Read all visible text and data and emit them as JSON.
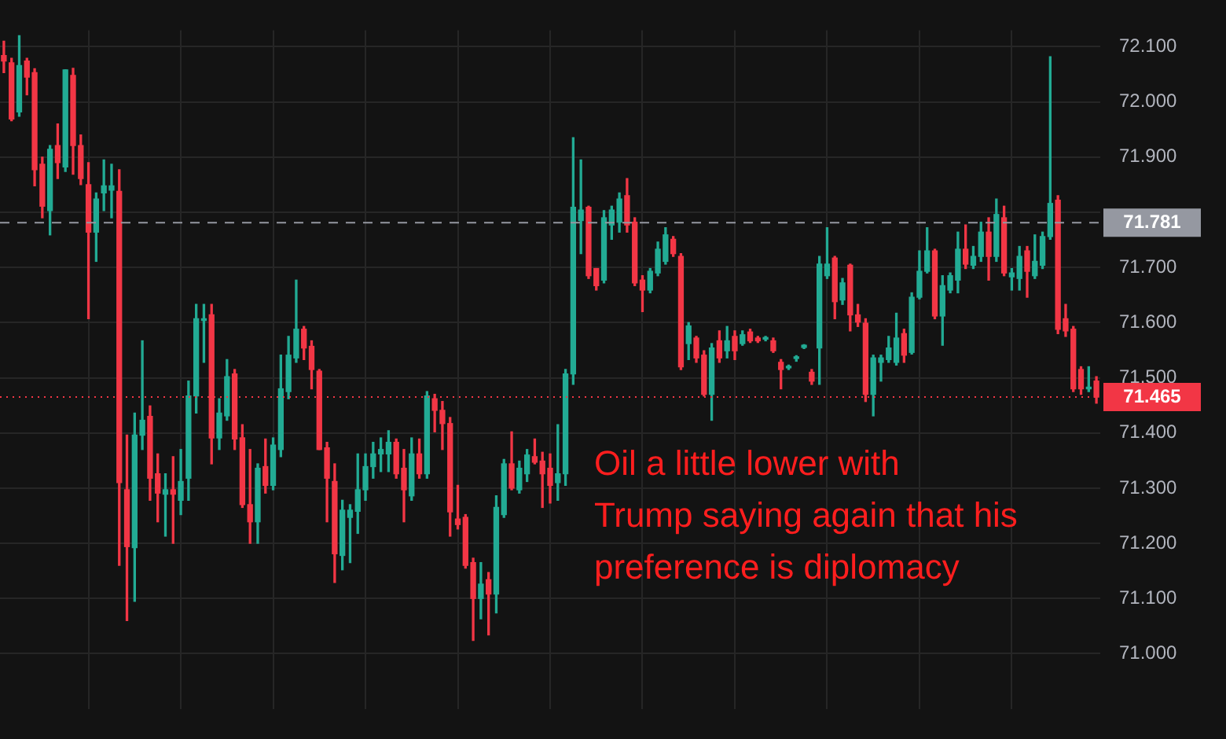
{
  "chart_data": {
    "type": "candlestick",
    "categories": [
      null,
      null,
      null,
      null,
      null,
      null,
      null,
      null,
      null,
      null,
      null,
      null,
      null,
      null,
      null,
      null,
      null,
      null,
      null,
      null,
      null,
      null,
      null,
      null,
      null,
      null,
      null,
      null,
      null,
      null,
      null,
      null,
      null,
      null,
      null,
      null,
      null,
      null,
      null,
      null,
      null,
      null,
      null,
      null,
      null,
      null,
      null,
      null,
      null,
      null,
      null,
      null,
      null,
      null,
      null,
      null,
      null,
      null,
      null,
      null,
      null,
      null,
      null,
      null,
      null,
      null,
      null,
      null,
      null,
      null,
      null,
      null,
      null,
      null,
      null,
      null,
      null,
      null,
      null,
      null,
      null,
      null,
      null,
      null,
      null,
      null,
      null,
      null,
      null,
      null,
      null,
      null,
      null,
      null,
      null,
      null,
      null,
      null,
      null,
      null,
      null,
      null,
      null,
      null,
      null,
      null,
      null,
      null,
      null,
      null,
      null,
      null,
      null,
      null,
      null,
      null,
      null,
      null,
      null,
      null,
      null,
      null,
      null,
      null,
      null,
      null,
      null,
      null,
      null,
      null,
      null,
      null,
      null,
      null,
      null,
      null,
      null,
      null,
      null,
      null,
      null,
      null,
      null
    ],
    "ohlc": [
      [
        72.084,
        72.11,
        72.053,
        72.074
      ],
      [
        72.071,
        72.079,
        71.966,
        71.969
      ],
      [
        71.982,
        72.12,
        71.974,
        72.066
      ],
      [
        72.074,
        72.079,
        72.013,
        72.045
      ],
      [
        72.053,
        72.06,
        71.848,
        71.877
      ],
      [
        71.887,
        71.9,
        71.79,
        71.811
      ],
      [
        71.803,
        71.921,
        71.759,
        71.914
      ],
      [
        71.921,
        71.96,
        71.861,
        71.89
      ],
      [
        71.882,
        72.058,
        71.874,
        72.058
      ],
      [
        72.048,
        72.061,
        71.869,
        71.921
      ],
      [
        71.921,
        71.94,
        71.85,
        71.861
      ],
      [
        71.85,
        71.89,
        71.607,
        71.764
      ],
      [
        71.764,
        71.835,
        71.711,
        71.824
      ],
      [
        71.835,
        71.895,
        71.803,
        71.848
      ],
      [
        71.84,
        71.887,
        71.79,
        71.848
      ],
      [
        71.838,
        71.877,
        71.16,
        71.31
      ],
      [
        71.297,
        71.396,
        71.06,
        71.194
      ],
      [
        71.192,
        71.436,
        71.095,
        71.396
      ],
      [
        71.396,
        71.567,
        71.37,
        71.423
      ],
      [
        71.43,
        71.449,
        71.278,
        71.318
      ],
      [
        71.326,
        71.362,
        71.239,
        71.291
      ],
      [
        71.289,
        71.326,
        71.213,
        71.297
      ],
      [
        71.297,
        71.357,
        71.2,
        71.289
      ],
      [
        71.278,
        71.37,
        71.252,
        71.312
      ],
      [
        71.318,
        71.494,
        71.278,
        71.467
      ],
      [
        71.467,
        71.633,
        71.436,
        71.607
      ],
      [
        71.604,
        71.633,
        71.528,
        71.607
      ],
      [
        71.614,
        71.633,
        71.344,
        71.391
      ],
      [
        71.391,
        71.462,
        71.37,
        71.436
      ],
      [
        71.431,
        71.533,
        71.423,
        71.502
      ],
      [
        71.507,
        71.515,
        71.37,
        71.389
      ],
      [
        71.391,
        71.415,
        71.265,
        71.27
      ],
      [
        71.27,
        71.37,
        71.2,
        71.239
      ],
      [
        71.239,
        71.344,
        71.2,
        71.336
      ],
      [
        71.339,
        71.389,
        71.291,
        71.305
      ],
      [
        71.305,
        71.391,
        71.297,
        71.378
      ],
      [
        71.37,
        71.541,
        71.357,
        71.48
      ],
      [
        71.475,
        71.575,
        71.462,
        71.541
      ],
      [
        71.536,
        71.677,
        71.528,
        71.588
      ],
      [
        71.588,
        71.593,
        71.533,
        71.554
      ],
      [
        71.557,
        71.567,
        71.48,
        71.515
      ],
      [
        71.512,
        71.515,
        71.37,
        71.37
      ],
      [
        71.373,
        71.383,
        71.239,
        71.318
      ],
      [
        71.312,
        71.344,
        71.129,
        71.181
      ],
      [
        71.178,
        71.278,
        71.152,
        71.26
      ],
      [
        71.247,
        71.27,
        71.165,
        71.26
      ],
      [
        71.258,
        71.362,
        71.218,
        71.297
      ],
      [
        71.297,
        71.362,
        71.278,
        71.339
      ],
      [
        71.339,
        71.383,
        71.318,
        71.362
      ],
      [
        71.362,
        71.391,
        71.33,
        71.37
      ],
      [
        71.362,
        71.404,
        71.33,
        71.383
      ],
      [
        71.383,
        71.389,
        71.318,
        71.326
      ],
      [
        71.336,
        71.37,
        71.239,
        71.297
      ],
      [
        71.286,
        71.391,
        71.278,
        71.362
      ],
      [
        71.362,
        71.389,
        71.318,
        71.326
      ],
      [
        71.326,
        71.475,
        71.318,
        71.467
      ],
      [
        71.462,
        71.47,
        71.402,
        71.441
      ],
      [
        71.441,
        71.457,
        71.37,
        71.417
      ],
      [
        71.417,
        71.428,
        71.213,
        71.257
      ],
      [
        71.244,
        71.305,
        71.226,
        71.234
      ],
      [
        71.247,
        71.252,
        71.155,
        71.16
      ],
      [
        71.165,
        71.173,
        71.024,
        71.1
      ],
      [
        71.1,
        71.165,
        71.063,
        71.126
      ],
      [
        71.134,
        71.147,
        71.034,
        71.108
      ],
      [
        71.108,
        71.286,
        71.074,
        71.265
      ],
      [
        71.252,
        71.352,
        71.247,
        71.344
      ],
      [
        71.344,
        71.402,
        71.297,
        71.3
      ],
      [
        71.297,
        71.349,
        71.291,
        71.336
      ],
      [
        71.326,
        71.37,
        71.312,
        71.36
      ],
      [
        71.357,
        71.389,
        71.344,
        71.347
      ],
      [
        71.349,
        71.365,
        71.265,
        71.326
      ],
      [
        71.336,
        71.362,
        71.273,
        71.305
      ],
      [
        71.31,
        71.415,
        71.278,
        71.326
      ],
      [
        71.326,
        71.515,
        71.305,
        71.507
      ],
      [
        71.507,
        71.935,
        71.488,
        71.809
      ],
      [
        71.785,
        71.895,
        71.725,
        71.804
      ],
      [
        71.809,
        71.811,
        71.68,
        71.685
      ],
      [
        71.698,
        71.698,
        71.659,
        71.667
      ],
      [
        71.677,
        71.803,
        71.672,
        71.79
      ],
      [
        71.777,
        71.811,
        71.751,
        71.804
      ],
      [
        71.782,
        71.835,
        71.764,
        71.824
      ],
      [
        71.83,
        71.861,
        71.764,
        71.777
      ],
      [
        71.782,
        71.79,
        71.667,
        71.672
      ],
      [
        71.677,
        71.685,
        71.62,
        71.659
      ],
      [
        71.659,
        71.698,
        71.654,
        71.693
      ],
      [
        71.69,
        71.746,
        71.685,
        71.733
      ],
      [
        71.711,
        71.772,
        71.706,
        71.759
      ],
      [
        71.751,
        71.756,
        71.72,
        71.725
      ],
      [
        71.72,
        71.725,
        71.515,
        71.52
      ],
      [
        71.562,
        71.6,
        71.533,
        71.594
      ],
      [
        71.572,
        71.575,
        71.528,
        71.536
      ],
      [
        71.541,
        71.549,
        71.467,
        71.47
      ],
      [
        71.47,
        71.562,
        71.423,
        71.554
      ],
      [
        71.567,
        71.585,
        71.528,
        71.536
      ],
      [
        71.549,
        71.593,
        71.536,
        71.567
      ],
      [
        71.575,
        71.585,
        71.533,
        71.549
      ],
      [
        71.562,
        71.585,
        71.559,
        71.578
      ],
      [
        71.583,
        71.588,
        71.564,
        71.567
      ],
      [
        71.572,
        71.575,
        71.564,
        71.567
      ],
      [
        71.57,
        71.575,
        71.567,
        71.573
      ],
      [
        71.567,
        71.572,
        71.546,
        71.549
      ],
      [
        71.528,
        71.533,
        71.48,
        71.515
      ],
      [
        71.518,
        71.523,
        71.515,
        71.52
      ],
      [
        71.535,
        71.54,
        71.53,
        71.538
      ],
      [
        71.555,
        71.56,
        71.553,
        71.559
      ],
      [
        71.51,
        71.515,
        71.488,
        71.494
      ],
      [
        71.554,
        71.72,
        71.488,
        71.706
      ],
      [
        71.685,
        71.772,
        71.68,
        71.706
      ],
      [
        71.717,
        71.72,
        71.607,
        71.638
      ],
      [
        71.641,
        71.68,
        71.633,
        71.672
      ],
      [
        71.704,
        71.706,
        71.585,
        71.614
      ],
      [
        71.614,
        71.633,
        71.593,
        71.601
      ],
      [
        71.599,
        71.607,
        71.457,
        71.47
      ],
      [
        71.47,
        71.541,
        71.431,
        71.536
      ],
      [
        71.528,
        71.541,
        71.494,
        71.536
      ],
      [
        71.533,
        71.575,
        71.528,
        71.554
      ],
      [
        71.528,
        71.617,
        71.523,
        71.572
      ],
      [
        71.58,
        71.588,
        71.528,
        71.541
      ],
      [
        71.546,
        71.654,
        71.543,
        71.646
      ],
      [
        71.646,
        71.73,
        71.643,
        71.693
      ],
      [
        71.693,
        71.772,
        71.69,
        71.73
      ],
      [
        71.73,
        71.733,
        71.607,
        71.612
      ],
      [
        71.612,
        71.685,
        71.559,
        71.667
      ],
      [
        71.659,
        71.69,
        71.654,
        71.685
      ],
      [
        71.677,
        71.764,
        71.654,
        71.733
      ],
      [
        71.733,
        71.777,
        71.698,
        71.706
      ],
      [
        71.704,
        71.738,
        71.698,
        71.72
      ],
      [
        71.72,
        71.782,
        71.711,
        71.764
      ],
      [
        71.764,
        71.79,
        71.677,
        71.72
      ],
      [
        71.72,
        71.824,
        71.711,
        71.796
      ],
      [
        71.79,
        71.811,
        71.685,
        71.69
      ],
      [
        71.683,
        71.698,
        71.659,
        71.69
      ],
      [
        71.68,
        71.738,
        71.659,
        71.72
      ],
      [
        71.73,
        71.738,
        71.646,
        71.693
      ],
      [
        71.685,
        71.759,
        71.68,
        71.711
      ],
      [
        71.704,
        71.764,
        71.698,
        71.756
      ],
      [
        71.756,
        72.082,
        71.751,
        71.816
      ],
      [
        71.822,
        71.83,
        71.58,
        71.588
      ],
      [
        71.607,
        71.633,
        71.575,
        71.585
      ],
      [
        71.588,
        71.593,
        71.475,
        71.48
      ],
      [
        71.515,
        71.52,
        71.47,
        71.48
      ],
      [
        71.48,
        71.52,
        71.475,
        71.483
      ],
      [
        71.494,
        71.502,
        71.454,
        71.465
      ]
    ],
    "colors": [
      "#f23645",
      "#f23645",
      "#22ab94",
      "#f23645",
      "#f23645",
      "#f23645",
      "#22ab94",
      "#f23645",
      "#22ab94",
      "#f23645",
      "#f23645",
      "#f23645",
      "#22ab94",
      "#22ab94",
      "#22ab94",
      "#f23645",
      "#f23645",
      "#22ab94",
      "#22ab94",
      "#f23645",
      "#f23645",
      "#22ab94",
      "#f23645",
      "#22ab94",
      "#22ab94",
      "#22ab94",
      "#22ab94",
      "#f23645",
      "#22ab94",
      "#22ab94",
      "#f23645",
      "#f23645",
      "#f23645",
      "#22ab94",
      "#f23645",
      "#22ab94",
      "#22ab94",
      "#22ab94",
      "#22ab94",
      "#f23645",
      "#f23645",
      "#f23645",
      "#f23645",
      "#f23645",
      "#22ab94",
      "#22ab94",
      "#22ab94",
      "#22ab94",
      "#22ab94",
      "#22ab94",
      "#22ab94",
      "#f23645",
      "#f23645",
      "#22ab94",
      "#f23645",
      "#22ab94",
      "#f23645",
      "#f23645",
      "#f23645",
      "#f23645",
      "#f23645",
      "#f23645",
      "#22ab94",
      "#f23645",
      "#22ab94",
      "#22ab94",
      "#f23645",
      "#22ab94",
      "#22ab94",
      "#f23645",
      "#f23645",
      "#f23645",
      "#22ab94",
      "#22ab94",
      "#22ab94",
      "#22ab94",
      "#f23645",
      "#f23645",
      "#22ab94",
      "#22ab94",
      "#22ab94",
      "#f23645",
      "#f23645",
      "#f23645",
      "#22ab94",
      "#22ab94",
      "#22ab94",
      "#f23645",
      "#f23645",
      "#22ab94",
      "#f23645",
      "#f23645",
      "#22ab94",
      "#f23645",
      "#22ab94",
      "#f23645",
      "#22ab94",
      "#f23645",
      "#f23645",
      "#22ab94",
      "#f23645",
      "#f23645",
      "#22ab94",
      "#22ab94",
      "#22ab94",
      "#f23645",
      "#22ab94",
      "#22ab94",
      "#f23645",
      "#22ab94",
      "#f23645",
      "#f23645",
      "#f23645",
      "#22ab94",
      "#22ab94",
      "#22ab94",
      "#22ab94",
      "#f23645",
      "#22ab94",
      "#22ab94",
      "#22ab94",
      "#f23645",
      "#22ab94",
      "#22ab94",
      "#22ab94",
      "#f23645",
      "#22ab94",
      "#22ab94",
      "#f23645",
      "#22ab94",
      "#f23645",
      "#22ab94",
      "#22ab94",
      "#f23645",
      "#22ab94",
      "#22ab94",
      "#22ab94",
      "#f23645",
      "#f23645",
      "#f23645",
      "#f23645",
      "#22ab94",
      "#f23645"
    ],
    "ylim": [
      70.9,
      72.13
    ],
    "yticks": [
      {
        "value": 71.0,
        "label": "71.000"
      },
      {
        "value": 71.1,
        "label": "71.100"
      },
      {
        "value": 71.2,
        "label": "71.200"
      },
      {
        "value": 71.3,
        "label": "71.300"
      },
      {
        "value": 71.4,
        "label": "71.400"
      },
      {
        "value": 71.5,
        "label": "71.500"
      },
      {
        "value": 71.6,
        "label": "71.600"
      },
      {
        "value": 71.7,
        "label": "71.700"
      },
      {
        "value": 71.8,
        "label": null
      },
      {
        "value": 71.9,
        "label": "71.900"
      },
      {
        "value": 72.0,
        "label": "72.000"
      },
      {
        "value": 72.1,
        "label": "72.100"
      }
    ],
    "tick_labels": "y",
    "grid": true,
    "ref_lines": [
      {
        "axis": "y",
        "value": 71.781,
        "label": "71.781",
        "color": "#9598a1",
        "line_style": "dashed"
      },
      {
        "axis": "y",
        "value": 71.465,
        "label": "71.465",
        "color": "#f23645",
        "line_style": "dotted"
      }
    ],
    "annotations": [
      "Oil a little lower with\nTrump saying again that his\npreference is diplomacy"
    ]
  }
}
